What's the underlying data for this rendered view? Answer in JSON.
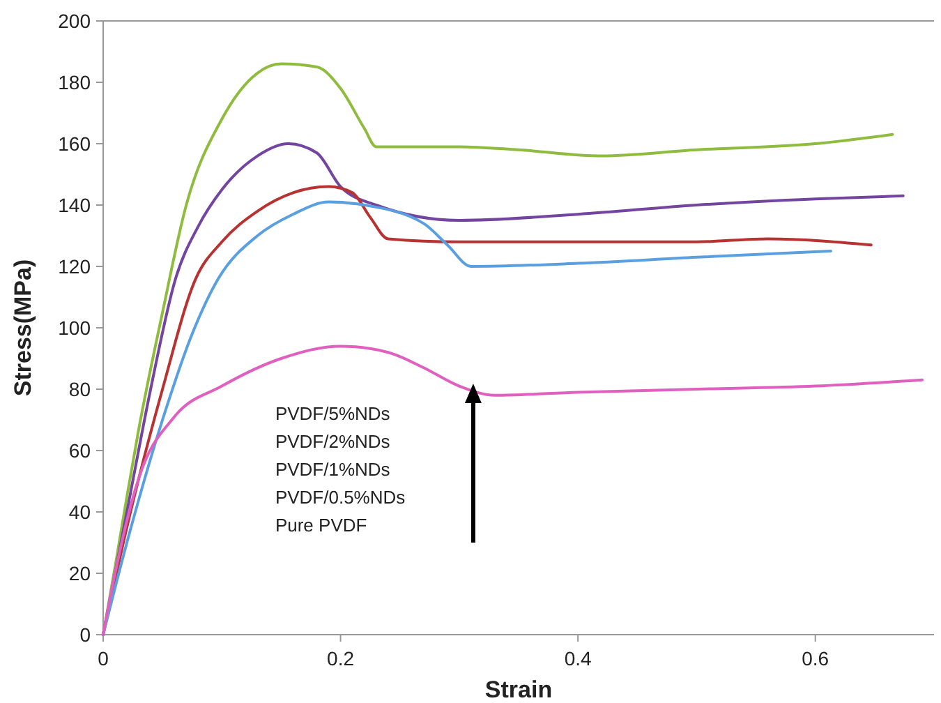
{
  "chart_data": {
    "type": "line",
    "xlabel": "Strain",
    "ylabel": "Stress(MPa)",
    "xlim": [
      0,
      0.7
    ],
    "ylim": [
      0,
      200
    ],
    "xticks": [
      0,
      0.2,
      0.4,
      0.6
    ],
    "yticks": [
      0,
      20,
      40,
      60,
      80,
      100,
      120,
      140,
      160,
      180,
      200
    ],
    "grid": false,
    "marker": "none",
    "line_style": "solid",
    "annotations": [
      "PVDF/5%NDs",
      "PVDF/2%NDs",
      "PVDF/1%NDs",
      "PVDF/0.5%NDs",
      "Pure PVDF"
    ],
    "series": [
      {
        "color": "#8fbc3f",
        "x": [
          0,
          0.01,
          0.02,
          0.03,
          0.05,
          0.07,
          0.1,
          0.13,
          0.15,
          0.18,
          0.2,
          0.22,
          0.23,
          0.3,
          0.35,
          0.42,
          0.5,
          0.6,
          0.665
        ],
        "values": [
          0,
          22,
          45,
          67,
          105,
          140,
          168,
          183,
          186,
          185,
          178,
          165,
          159,
          159,
          158,
          156,
          158,
          160,
          163
        ]
      },
      {
        "color": "#7345a0",
        "x": [
          0,
          0.02,
          0.04,
          0.061,
          0.08,
          0.1,
          0.13,
          0.156,
          0.18,
          0.2,
          0.23,
          0.3,
          0.4,
          0.5,
          0.6,
          0.674
        ],
        "values": [
          0,
          40,
          80,
          116,
          133,
          145,
          156,
          160,
          157,
          146,
          140,
          135,
          137,
          140,
          142,
          143
        ]
      },
      {
        "color": "#b83232",
        "x": [
          0,
          0.02,
          0.05,
          0.078,
          0.1,
          0.13,
          0.16,
          0.19,
          0.21,
          0.225,
          0.24,
          0.3,
          0.4,
          0.5,
          0.56,
          0.647
        ],
        "values": [
          0,
          35,
          80,
          116,
          128,
          138,
          144,
          146,
          144,
          136,
          129,
          128,
          128,
          128,
          129,
          127
        ]
      },
      {
        "color": "#5aa0e0",
        "x": [
          0,
          0.02,
          0.05,
          0.075,
          0.097,
          0.13,
          0.16,
          0.19,
          0.22,
          0.27,
          0.29,
          0.31,
          0.4,
          0.5,
          0.613
        ],
        "values": [
          0,
          30,
          70,
          98,
          116,
          130,
          137,
          141,
          140,
          134,
          127,
          120,
          121,
          123,
          125
        ]
      },
      {
        "color": "#e060c0",
        "x": [
          0,
          0.01,
          0.03,
          0.06,
          0.1,
          0.15,
          0.2,
          0.24,
          0.27,
          0.3,
          0.33,
          0.4,
          0.5,
          0.6,
          0.69
        ],
        "values": [
          0,
          20,
          51,
          71,
          81,
          90,
          94,
          92,
          87,
          81,
          78,
          79,
          80,
          81,
          83
        ]
      }
    ]
  }
}
